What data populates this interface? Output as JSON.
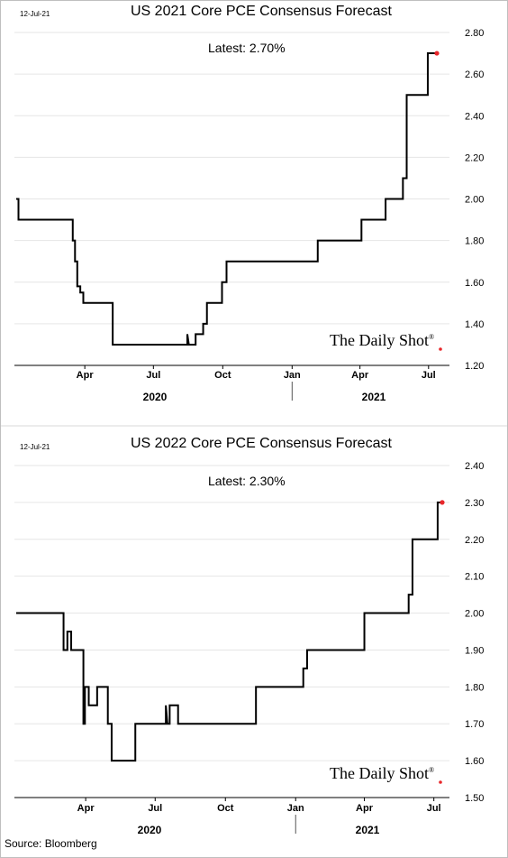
{
  "chart_data": [
    {
      "type": "line",
      "date_label": "12-Jul-21",
      "title": "US 2021 Core PCE Consensus Forecast",
      "annotation": "Latest:  2.70%",
      "brand": "The Daily Shot",
      "ylim": [
        1.2,
        2.8
      ],
      "y_ticks": [
        "2.80",
        "2.60",
        "2.40",
        "2.20",
        "2.00",
        "1.80",
        "1.60",
        "1.40",
        "1.20"
      ],
      "x_ticks": [
        "Apr",
        "Jul",
        "Oct",
        "Jan",
        "Apr",
        "Jul"
      ],
      "year_labels": [
        "2020",
        "2021"
      ],
      "grid": true,
      "last_point_color": "#e8262a",
      "points": [
        [
          "2020-01-01",
          2.0
        ],
        [
          "2020-01-04",
          2.0
        ],
        [
          "2020-01-04",
          1.9
        ],
        [
          "2020-03-16",
          1.9
        ],
        [
          "2020-03-16",
          1.8
        ],
        [
          "2020-03-19",
          1.8
        ],
        [
          "2020-03-19",
          1.7
        ],
        [
          "2020-03-22",
          1.7
        ],
        [
          "2020-03-22",
          1.58
        ],
        [
          "2020-03-26",
          1.58
        ],
        [
          "2020-03-26",
          1.55
        ],
        [
          "2020-03-30",
          1.55
        ],
        [
          "2020-03-30",
          1.5
        ],
        [
          "2020-05-08",
          1.5
        ],
        [
          "2020-05-08",
          1.3
        ],
        [
          "2020-08-15",
          1.3
        ],
        [
          "2020-08-15",
          1.35
        ],
        [
          "2020-08-17",
          1.3
        ],
        [
          "2020-08-26",
          1.3
        ],
        [
          "2020-08-26",
          1.35
        ],
        [
          "2020-09-05",
          1.35
        ],
        [
          "2020-09-05",
          1.4
        ],
        [
          "2020-09-10",
          1.4
        ],
        [
          "2020-09-10",
          1.5
        ],
        [
          "2020-09-30",
          1.5
        ],
        [
          "2020-09-30",
          1.6
        ],
        [
          "2020-10-06",
          1.6
        ],
        [
          "2020-10-06",
          1.7
        ],
        [
          "2021-02-04",
          1.7
        ],
        [
          "2021-02-04",
          1.8
        ],
        [
          "2021-04-03",
          1.8
        ],
        [
          "2021-04-03",
          1.9
        ],
        [
          "2021-05-05",
          1.9
        ],
        [
          "2021-05-05",
          2.0
        ],
        [
          "2021-05-28",
          2.0
        ],
        [
          "2021-05-28",
          2.1
        ],
        [
          "2021-06-02",
          2.1
        ],
        [
          "2021-06-02",
          2.5
        ],
        [
          "2021-06-30",
          2.5
        ],
        [
          "2021-06-30",
          2.7
        ],
        [
          "2021-07-12",
          2.7
        ]
      ]
    },
    {
      "type": "line",
      "date_label": "12-Jul-21",
      "title": "US 2022 Core PCE Consensus Forecast",
      "annotation": "Latest:  2.30%",
      "brand": "The Daily Shot",
      "ylim": [
        1.5,
        2.4
      ],
      "y_ticks": [
        "2.40",
        "2.30",
        "2.20",
        "2.10",
        "2.00",
        "1.90",
        "1.80",
        "1.70",
        "1.60",
        "1.50"
      ],
      "x_ticks": [
        "Apr",
        "Jul",
        "Oct",
        "Jan",
        "Apr",
        "Jul"
      ],
      "year_labels": [
        "2020",
        "2021"
      ],
      "grid": true,
      "last_point_color": "#e8262a",
      "points": [
        [
          "2020-01-01",
          2.0
        ],
        [
          "2020-03-03",
          2.0
        ],
        [
          "2020-03-03",
          1.9
        ],
        [
          "2020-03-08",
          1.9
        ],
        [
          "2020-03-08",
          1.95
        ],
        [
          "2020-03-13",
          1.95
        ],
        [
          "2020-03-13",
          1.9
        ],
        [
          "2020-03-29",
          1.9
        ],
        [
          "2020-03-29",
          1.7
        ],
        [
          "2020-03-31",
          1.7
        ],
        [
          "2020-03-31",
          1.8
        ],
        [
          "2020-04-05",
          1.8
        ],
        [
          "2020-04-05",
          1.75
        ],
        [
          "2020-04-16",
          1.75
        ],
        [
          "2020-04-16",
          1.8
        ],
        [
          "2020-04-30",
          1.8
        ],
        [
          "2020-04-30",
          1.7
        ],
        [
          "2020-05-05",
          1.7
        ],
        [
          "2020-05-05",
          1.6
        ],
        [
          "2020-06-05",
          1.6
        ],
        [
          "2020-06-05",
          1.7
        ],
        [
          "2020-07-15",
          1.7
        ],
        [
          "2020-07-15",
          1.75
        ],
        [
          "2020-07-17",
          1.7
        ],
        [
          "2020-07-20",
          1.7
        ],
        [
          "2020-07-20",
          1.75
        ],
        [
          "2020-07-31",
          1.75
        ],
        [
          "2020-07-31",
          1.7
        ],
        [
          "2020-11-10",
          1.7
        ],
        [
          "2020-11-10",
          1.8
        ],
        [
          "2021-01-11",
          1.8
        ],
        [
          "2021-01-11",
          1.85
        ],
        [
          "2021-01-16",
          1.85
        ],
        [
          "2021-01-16",
          1.9
        ],
        [
          "2021-04-01",
          1.9
        ],
        [
          "2021-04-01",
          2.0
        ],
        [
          "2021-05-29",
          2.0
        ],
        [
          "2021-05-29",
          2.05
        ],
        [
          "2021-06-03",
          2.05
        ],
        [
          "2021-06-03",
          2.2
        ],
        [
          "2021-07-06",
          2.2
        ],
        [
          "2021-07-06",
          2.3
        ],
        [
          "2021-07-12",
          2.3
        ]
      ]
    }
  ],
  "source": "Source: Bloomberg"
}
